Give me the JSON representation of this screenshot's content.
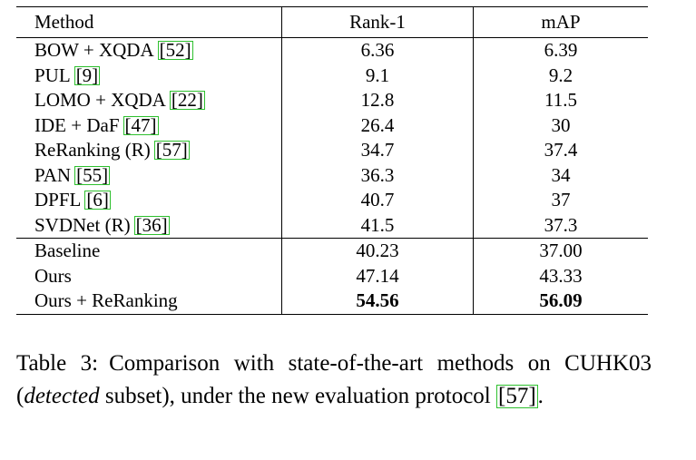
{
  "table": {
    "headers": {
      "method": "Method",
      "rank1": "Rank-1",
      "map": "mAP"
    },
    "groups": [
      [
        {
          "method": "BOW + XQDA",
          "cite": "[52]",
          "rank1": "6.36",
          "map": "6.39"
        },
        {
          "method": "PUL",
          "cite": "[9]",
          "rank1": "9.1",
          "map": "9.2"
        },
        {
          "method": "LOMO + XQDA",
          "cite": "[22]",
          "rank1": "12.8",
          "map": "11.5"
        },
        {
          "method": "IDE + DaF",
          "cite": "[47]",
          "rank1": "26.4",
          "map": "30"
        },
        {
          "method": "ReRanking (R)",
          "cite": "[57]",
          "rank1": "34.7",
          "map": "37.4"
        },
        {
          "method": "PAN",
          "cite": "[55]",
          "rank1": "36.3",
          "map": "34"
        },
        {
          "method": "DPFL",
          "cite": "[6]",
          "rank1": "40.7",
          "map": "37"
        },
        {
          "method": "SVDNet (R)",
          "cite": "[36]",
          "rank1": "41.5",
          "map": "37.3"
        }
      ],
      [
        {
          "method": "Baseline",
          "cite": "",
          "rank1": "40.23",
          "map": "37.00"
        },
        {
          "method": "Ours",
          "cite": "",
          "rank1": "47.14",
          "map": "43.33"
        },
        {
          "method": "Ours + ReRanking",
          "cite": "",
          "rank1": "54.56",
          "map": "56.09",
          "bold": true
        }
      ]
    ]
  },
  "caption": {
    "label": "Table 3:",
    "text_a": "Comparison with state-of-the-art methods on CUHK03 (",
    "italic": "detected",
    "text_b": " subset), under the new evaluation protocol ",
    "cite": "[57]",
    "end": "."
  }
}
